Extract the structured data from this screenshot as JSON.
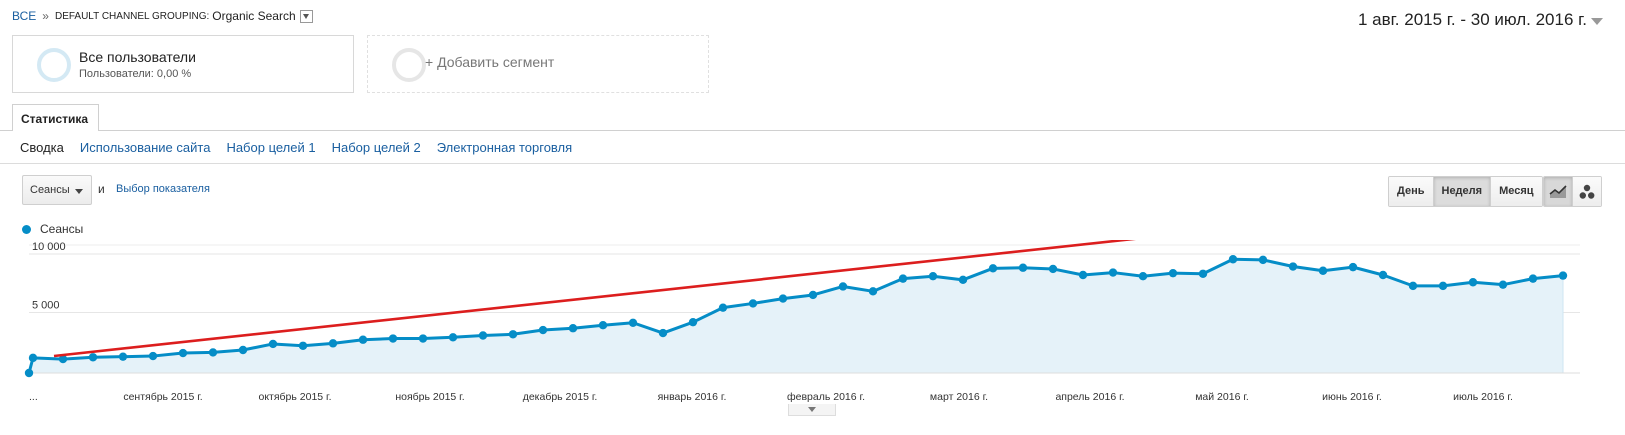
{
  "breadcrumb": {
    "root": "ВСЕ",
    "separator": "»",
    "dimension": "DEFAULT CHANNEL GROUPING:",
    "value": "Organic Search"
  },
  "date_range": "1 авг. 2015 г. - 30 июл. 2016 г.",
  "segments": {
    "all": {
      "title": "Все пользователи",
      "subtitle": "Пользователи: 0,00 %"
    },
    "add": {
      "label": "+ Добавить сегмент"
    }
  },
  "tabs": {
    "stats": "Статистика"
  },
  "subnav": [
    "Сводка",
    "Использование сайта",
    "Набор целей 1",
    "Набор целей 2",
    "Электронная торговля"
  ],
  "controls": {
    "metric": "Сеансы",
    "conjunction": "и",
    "choose_metric": "Выбор показателя",
    "granularity": [
      "День",
      "Неделя",
      "Месяц"
    ],
    "granularity_selected": "Неделя",
    "chart_type_icons": [
      "line-chart-icon",
      "motion-chart-icon"
    ]
  },
  "colors": {
    "accent": "#058dc7",
    "area_fill": "#e5f2f9",
    "trend_arrow": "#dc1e1e",
    "link": "#1a5fa0"
  },
  "chart_data": {
    "type": "line",
    "series": [
      {
        "name": "Сеансы",
        "values": [
          0,
          1250,
          1150,
          1300,
          1350,
          1400,
          1650,
          1700,
          1900,
          2400,
          2250,
          2450,
          2750,
          2850,
          2850,
          2950,
          3100,
          3200,
          3550,
          3700,
          3950,
          4150,
          3300,
          4200,
          5400,
          5750,
          6150,
          6450,
          7150,
          6750,
          7800,
          8000,
          7700,
          8650,
          8700,
          8600,
          8100,
          8300,
          8000,
          8250,
          8200,
          9400,
          9350,
          8800,
          8450,
          8750,
          8100,
          7200,
          7200,
          7500,
          7300,
          7800,
          8050
        ]
      }
    ],
    "y_ticks": [
      "10 000",
      "5 000"
    ],
    "ylim": [
      0,
      10000
    ],
    "x_labels": [
      "...",
      "сентябрь 2015 г.",
      "октябрь 2015 г.",
      "ноябрь 2015 г.",
      "декабрь 2015 г.",
      "январь 2016 г.",
      "февраль 2016 г.",
      "март 2016 г.",
      "апрель 2016 г.",
      "май 2016 г.",
      "июнь 2016 г.",
      "июль 2016 г."
    ],
    "grid": true,
    "legend": "top-left",
    "annotation": "upward trend arrow"
  }
}
